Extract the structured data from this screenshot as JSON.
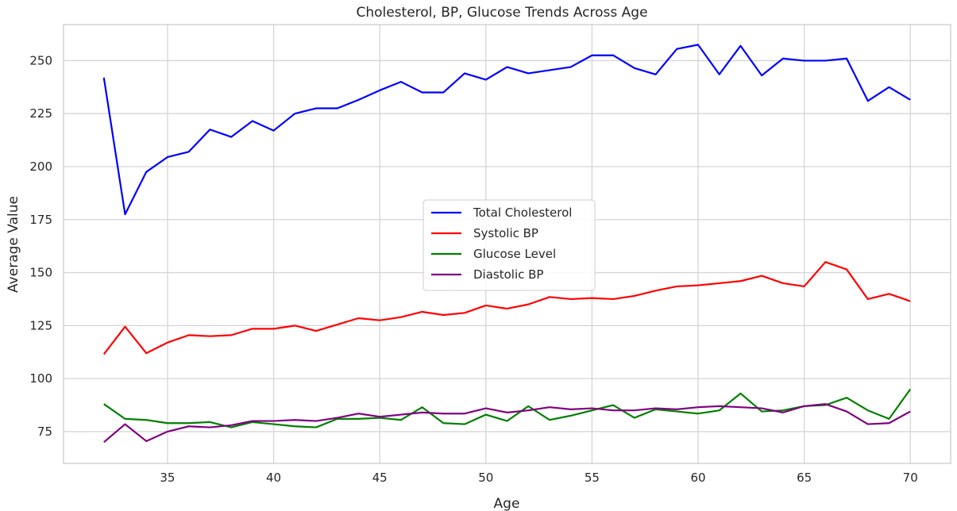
{
  "chart_data": {
    "type": "line",
    "title": "Cholesterol, BP, Glucose Trends Across Age",
    "xlabel": "Age",
    "ylabel": "Average Value",
    "xlim": [
      30.1,
      71.9
    ],
    "ylim": [
      60,
      267
    ],
    "xticks": [
      35,
      40,
      45,
      50,
      55,
      60,
      65,
      70
    ],
    "yticks": [
      75,
      100,
      125,
      150,
      175,
      200,
      225,
      250
    ],
    "grid": true,
    "legend_position": "center",
    "x": [
      32,
      33,
      34,
      35,
      36,
      37,
      38,
      39,
      40,
      41,
      42,
      43,
      44,
      45,
      46,
      47,
      48,
      49,
      50,
      51,
      52,
      53,
      54,
      55,
      56,
      57,
      58,
      59,
      60,
      61,
      62,
      63,
      64,
      65,
      66,
      67,
      68,
      69,
      70
    ],
    "series": [
      {
        "name": "Total Cholesterol",
        "color": "#0000ff",
        "values": [
          242,
          177.5,
          197.5,
          204.5,
          207,
          217.5,
          214,
          221.5,
          217,
          225,
          227.5,
          227.5,
          231.5,
          236,
          240,
          235,
          235,
          244,
          241,
          247,
          244,
          245.5,
          247,
          252.5,
          252.5,
          246.5,
          243.5,
          255.5,
          257.5,
          243.5,
          257,
          243,
          251,
          250,
          250,
          251,
          231,
          237.5,
          231.5
        ]
      },
      {
        "name": "Systolic BP",
        "color": "#ff0000",
        "values": [
          111.5,
          124.5,
          112,
          117,
          120.5,
          120,
          120.5,
          123.5,
          123.5,
          125,
          122.5,
          125.5,
          128.5,
          127.5,
          129,
          131.5,
          130,
          131,
          134.5,
          133,
          135,
          138.5,
          137.5,
          138,
          137.5,
          139,
          141.5,
          143.5,
          144,
          145,
          146,
          148.5,
          145,
          143.5,
          155,
          151.5,
          137.5,
          140,
          136.5
        ]
      },
      {
        "name": "Glucose Level",
        "color": "#008000",
        "values": [
          88,
          81,
          80.5,
          79,
          79,
          79.5,
          77,
          79.5,
          78.5,
          77.5,
          77,
          81,
          81,
          81.5,
          80.5,
          86.5,
          79,
          78.5,
          83,
          80,
          87,
          80.5,
          82.5,
          85,
          87.5,
          81.5,
          85.5,
          84.5,
          83.5,
          85,
          93,
          84.5,
          85,
          87,
          87.5,
          91,
          85,
          81,
          95
        ]
      },
      {
        "name": "Diastolic BP",
        "color": "#800080",
        "values": [
          70,
          78.5,
          70.5,
          75,
          77.5,
          77,
          78,
          80,
          80,
          80.5,
          80,
          81.5,
          83.5,
          82,
          83,
          84,
          83.5,
          83.5,
          86,
          84,
          85,
          86.5,
          85.5,
          86,
          85,
          85,
          86,
          85.5,
          86.5,
          87,
          86.5,
          86,
          84,
          87,
          88,
          84.5,
          78.5,
          79,
          84.5
        ]
      }
    ]
  }
}
